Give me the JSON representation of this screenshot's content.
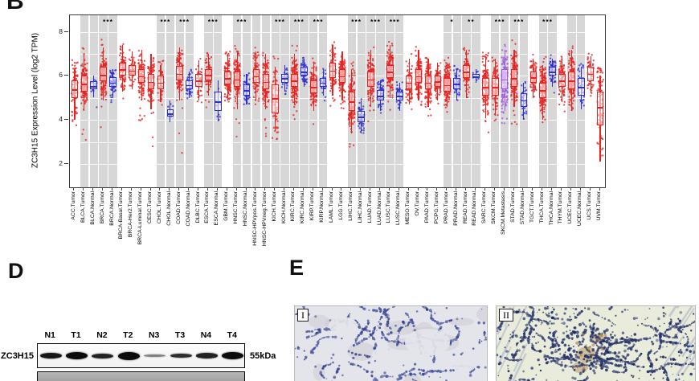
{
  "panel_b": {
    "label": "B",
    "y_axis": {
      "label": "ZC3H15 Expression Level (log2 TPM)",
      "ticks": [
        8,
        6,
        4,
        2
      ]
    }
  },
  "chart_data": {
    "type": "boxplot-jitter",
    "title": "",
    "ylabel": "ZC3H15 Expression Level (log2 TPM)",
    "ylim": [
      0.95,
      8.75
    ],
    "yticks": [
      2,
      4,
      6,
      8
    ],
    "grid": true,
    "series_colors": {
      "tumor": "#e62320",
      "normal": "#2e2ed0",
      "metastasis": "#a05ae0"
    },
    "band_color": "#d7d7d7",
    "columns_schema": [
      "label",
      "series",
      "shaded",
      "q1",
      "median",
      "q3",
      "whisker_low",
      "whisker_high",
      "scatter_low",
      "scatter_high",
      "n_points"
    ],
    "columns": [
      [
        "ACC.Tumor",
        "tumor",
        0,
        5.0,
        5.4,
        5.8,
        4.0,
        6.3,
        3.6,
        6.9,
        75
      ],
      [
        "BLCA.Tumor",
        "tumor",
        1,
        5.3,
        5.65,
        6.0,
        4.4,
        7.0,
        3.1,
        7.3,
        130
      ],
      [
        "BLCA.Normal",
        "normal",
        1,
        5.4,
        5.55,
        5.75,
        5.05,
        6.0,
        4.5,
        6.2,
        19
      ],
      [
        "BRCA.Tumor",
        "tumor",
        1,
        5.75,
        6.05,
        6.4,
        4.9,
        7.3,
        3.4,
        7.7,
        150
      ],
      [
        "BRCA.Normal",
        "normal",
        1,
        5.5,
        5.7,
        5.95,
        5.0,
        6.3,
        4.6,
        6.4,
        70
      ],
      [
        "BRCA-Basal.Tumor",
        "tumor",
        0,
        6.0,
        6.3,
        6.6,
        5.3,
        7.4,
        4.9,
        7.6,
        95
      ],
      [
        "BRCA-Her2.Tumor",
        "tumor",
        0,
        6.0,
        6.25,
        6.5,
        5.4,
        7.1,
        5.1,
        7.3,
        55
      ],
      [
        "BRCA-Luminal.Tumor",
        "tumor",
        0,
        5.7,
        6.0,
        6.3,
        4.9,
        7.2,
        3.9,
        7.4,
        130
      ],
      [
        "CESC.Tumor",
        "tumor",
        0,
        5.4,
        5.75,
        6.1,
        4.5,
        7.0,
        2.4,
        7.2,
        120
      ],
      [
        "CHOL.Tumor",
        "tumor",
        1,
        5.4,
        5.7,
        6.0,
        4.8,
        6.5,
        4.3,
        6.7,
        36
      ],
      [
        "CHOL.Normal",
        "normal",
        1,
        4.15,
        4.3,
        4.5,
        3.9,
        4.9,
        3.9,
        4.9,
        9
      ],
      [
        "COAD.Tumor",
        "tumor",
        1,
        5.8,
        6.1,
        6.45,
        4.9,
        7.3,
        2.5,
        7.5,
        120
      ],
      [
        "COAD.Normal",
        "normal",
        1,
        5.4,
        5.6,
        5.8,
        5.0,
        6.2,
        4.9,
        6.3,
        40
      ],
      [
        "DLBC.Tumor",
        "tumor",
        0,
        5.5,
        5.8,
        6.1,
        4.9,
        6.7,
        4.4,
        6.9,
        45
      ],
      [
        "ESCA.Tumor",
        "tumor",
        1,
        5.8,
        6.05,
        6.3,
        5.1,
        7.0,
        4.2,
        7.3,
        95
      ],
      [
        "ESCA.Normal",
        "normal",
        1,
        4.4,
        4.85,
        5.3,
        3.95,
        5.8,
        3.95,
        6.1,
        11
      ],
      [
        "GBM.Tumor",
        "tumor",
        0,
        5.6,
        5.9,
        6.2,
        4.9,
        7.0,
        4.5,
        7.2,
        140
      ],
      [
        "HNSC.Tumor",
        "tumor",
        1,
        5.5,
        5.85,
        6.2,
        4.5,
        7.1,
        3.0,
        7.4,
        150
      ],
      [
        "HNSC.Normal",
        "normal",
        1,
        5.1,
        5.35,
        5.6,
        4.7,
        6.1,
        4.5,
        6.2,
        44
      ],
      [
        "HNSC-HPVpos.Tumor",
        "tumor",
        1,
        5.7,
        6.0,
        6.3,
        4.9,
        7.1,
        4.5,
        7.3,
        90
      ],
      [
        "HNSC-HPVneg.Tumor",
        "tumor",
        1,
        5.4,
        5.75,
        6.1,
        4.5,
        7.0,
        3.2,
        7.2,
        130
      ],
      [
        "KICH.Tumor",
        "tumor",
        1,
        4.3,
        5.0,
        5.6,
        3.5,
        6.4,
        3.1,
        6.9,
        66
      ],
      [
        "KICH.Normal",
        "normal",
        1,
        5.7,
        5.9,
        6.1,
        5.3,
        6.5,
        4.7,
        6.6,
        25
      ],
      [
        "KIRC.Tumor",
        "tumor",
        1,
        5.5,
        5.8,
        6.1,
        4.7,
        7.0,
        3.9,
        7.4,
        150
      ],
      [
        "KIRC.Normal",
        "normal",
        1,
        6.0,
        6.2,
        6.4,
        5.5,
        6.8,
        5.3,
        6.9,
        72
      ],
      [
        "KIRP.Tumor",
        "tumor",
        1,
        5.2,
        5.5,
        5.8,
        4.4,
        6.6,
        3.7,
        7.0,
        120
      ],
      [
        "KIRP.Normal",
        "normal",
        1,
        5.5,
        5.7,
        5.9,
        5.1,
        6.3,
        4.8,
        6.4,
        32
      ],
      [
        "LAML.Tumor",
        "tumor",
        0,
        5.9,
        6.25,
        6.6,
        5.1,
        7.4,
        4.6,
        7.7,
        80
      ],
      [
        "LGG.Tumor",
        "tumor",
        0,
        5.7,
        6.0,
        6.3,
        4.9,
        7.1,
        4.3,
        7.3,
        140
      ],
      [
        "LIHC.Tumor",
        "tumor",
        1,
        4.4,
        4.85,
        5.3,
        3.4,
        6.3,
        2.2,
        7.0,
        140
      ],
      [
        "LIHC.Normal",
        "normal",
        1,
        3.9,
        4.15,
        4.4,
        3.4,
        4.9,
        3.2,
        5.1,
        50
      ],
      [
        "LUAD.Tumor",
        "tumor",
        1,
        5.5,
        5.85,
        6.2,
        4.6,
        7.2,
        3.9,
        7.9,
        150
      ],
      [
        "LUAD.Normal",
        "normal",
        1,
        4.9,
        5.1,
        5.35,
        4.4,
        5.8,
        4.2,
        5.9,
        58
      ],
      [
        "LUSC.Tumor",
        "tumor",
        1,
        5.9,
        6.2,
        6.5,
        5.0,
        7.4,
        4.3,
        7.6,
        150
      ],
      [
        "LUSC.Normal",
        "normal",
        1,
        4.9,
        5.1,
        5.3,
        4.4,
        5.7,
        4.2,
        5.8,
        50
      ],
      [
        "MESO.Tumor",
        "tumor",
        0,
        5.4,
        5.7,
        6.0,
        4.7,
        6.8,
        4.3,
        7.0,
        85
      ],
      [
        "OV.Tumor",
        "tumor",
        0,
        5.7,
        6.0,
        6.3,
        4.9,
        7.2,
        4.4,
        7.4,
        140
      ],
      [
        "PAAD.Tumor",
        "tumor",
        0,
        5.4,
        5.7,
        6.0,
        4.6,
        6.8,
        4.0,
        7.0,
        120
      ],
      [
        "PCPG.Tumor",
        "tumor",
        0,
        5.5,
        5.75,
        6.0,
        4.9,
        6.6,
        4.5,
        6.9,
        110
      ],
      [
        "PRAD.Tumor",
        "tumor",
        1,
        5.3,
        5.6,
        5.9,
        4.6,
        6.6,
        4.0,
        6.9,
        150
      ],
      [
        "PRAD.Normal",
        "normal",
        1,
        5.4,
        5.65,
        5.9,
        4.9,
        6.3,
        4.5,
        6.5,
        50
      ],
      [
        "READ.Tumor",
        "tumor",
        1,
        5.9,
        6.2,
        6.5,
        5.0,
        7.2,
        4.0,
        7.4,
        90
      ],
      [
        "READ.Normal",
        "normal",
        1,
        5.9,
        6.0,
        6.1,
        5.7,
        6.3,
        5.6,
        6.3,
        9
      ],
      [
        "SARC.Tumor",
        "tumor",
        0,
        5.1,
        5.5,
        5.9,
        4.1,
        6.9,
        3.1,
        7.1,
        140
      ],
      [
        "SKCM.Tumor",
        "tumor",
        1,
        5.1,
        5.5,
        5.9,
        4.2,
        6.8,
        3.5,
        7.1,
        100
      ],
      [
        "SKCM.Metastasis",
        "metastasis",
        1,
        5.4,
        5.85,
        6.3,
        4.4,
        7.2,
        3.7,
        7.5,
        150
      ],
      [
        "STAD.Tumor",
        "tumor",
        1,
        5.5,
        5.9,
        6.3,
        4.6,
        7.2,
        3.8,
        7.9,
        150
      ],
      [
        "STAD.Normal",
        "normal",
        1,
        4.6,
        4.9,
        5.2,
        4.0,
        5.7,
        3.9,
        5.9,
        35
      ],
      [
        "TGCT.Tumor",
        "tumor",
        0,
        5.7,
        5.95,
        6.2,
        5.0,
        6.8,
        4.6,
        7.0,
        100
      ],
      [
        "THCA.Tumor",
        "tumor",
        1,
        5.0,
        5.35,
        5.7,
        4.0,
        6.5,
        3.4,
        7.0,
        150
      ],
      [
        "THCA.Normal",
        "normal",
        1,
        6.0,
        6.2,
        6.4,
        5.5,
        6.8,
        5.2,
        7.0,
        59
      ],
      [
        "THYM.Tumor",
        "tumor",
        0,
        5.5,
        5.8,
        6.1,
        4.8,
        6.9,
        4.3,
        7.1,
        100
      ],
      [
        "UCEC.Tumor",
        "tumor",
        1,
        5.4,
        5.8,
        6.2,
        4.4,
        7.2,
        2.8,
        7.4,
        150
      ],
      [
        "UCEC.Normal",
        "normal",
        1,
        5.1,
        5.5,
        5.9,
        4.5,
        6.4,
        4.2,
        6.6,
        35
      ],
      [
        "UCS.Tumor",
        "tumor",
        0,
        5.75,
        6.1,
        6.4,
        5.2,
        6.9,
        5.0,
        7.1,
        55
      ],
      [
        "UVM.Tumor",
        "tumor",
        0,
        3.75,
        4.6,
        5.3,
        2.1,
        6.0,
        1.9,
        6.4,
        80
      ]
    ],
    "significance_schema": [
      "group",
      "col_start",
      "col_end",
      "stars"
    ],
    "significance": [
      [
        "BRCA",
        3,
        4,
        "***"
      ],
      [
        "CHOL",
        9,
        10,
        "***"
      ],
      [
        "COAD",
        11,
        12,
        "***"
      ],
      [
        "ESCA",
        14,
        15,
        "***"
      ],
      [
        "HNSC",
        17,
        18,
        "***"
      ],
      [
        "KICH",
        21,
        22,
        "***"
      ],
      [
        "KIRC",
        23,
        24,
        "***"
      ],
      [
        "KIRP",
        25,
        26,
        "***"
      ],
      [
        "LIHC",
        29,
        30,
        "***"
      ],
      [
        "LUAD",
        31,
        32,
        "***"
      ],
      [
        "LUSC",
        33,
        34,
        "***"
      ],
      [
        "PRAD",
        39,
        40,
        "*"
      ],
      [
        "READ",
        41,
        42,
        "**"
      ],
      [
        "SKCM",
        44,
        45,
        "***"
      ],
      [
        "STAD",
        46,
        47,
        "***"
      ],
      [
        "THCA",
        49,
        50,
        "***"
      ]
    ]
  },
  "panel_d": {
    "label": "D",
    "protein_label": "ZC3H15",
    "size_label": "55kDa",
    "lanes": [
      {
        "label": "N1",
        "band_thickness": 7,
        "band_intensity": 0.95
      },
      {
        "label": "T1",
        "band_thickness": 9,
        "band_intensity": 1.0
      },
      {
        "label": "N2",
        "band_thickness": 6,
        "band_intensity": 0.9
      },
      {
        "label": "T2",
        "band_thickness": 10,
        "band_intensity": 1.0
      },
      {
        "label": "N3",
        "band_thickness": 3.5,
        "band_intensity": 0.5
      },
      {
        "label": "T3",
        "band_thickness": 5.5,
        "band_intensity": 0.85
      },
      {
        "label": "N4",
        "band_thickness": 6.5,
        "band_intensity": 0.9
      },
      {
        "label": "T4",
        "band_thickness": 9,
        "band_intensity": 1.0
      }
    ]
  },
  "panel_e": {
    "label": "E",
    "images": [
      {
        "label": "I"
      },
      {
        "label": "II"
      }
    ]
  }
}
